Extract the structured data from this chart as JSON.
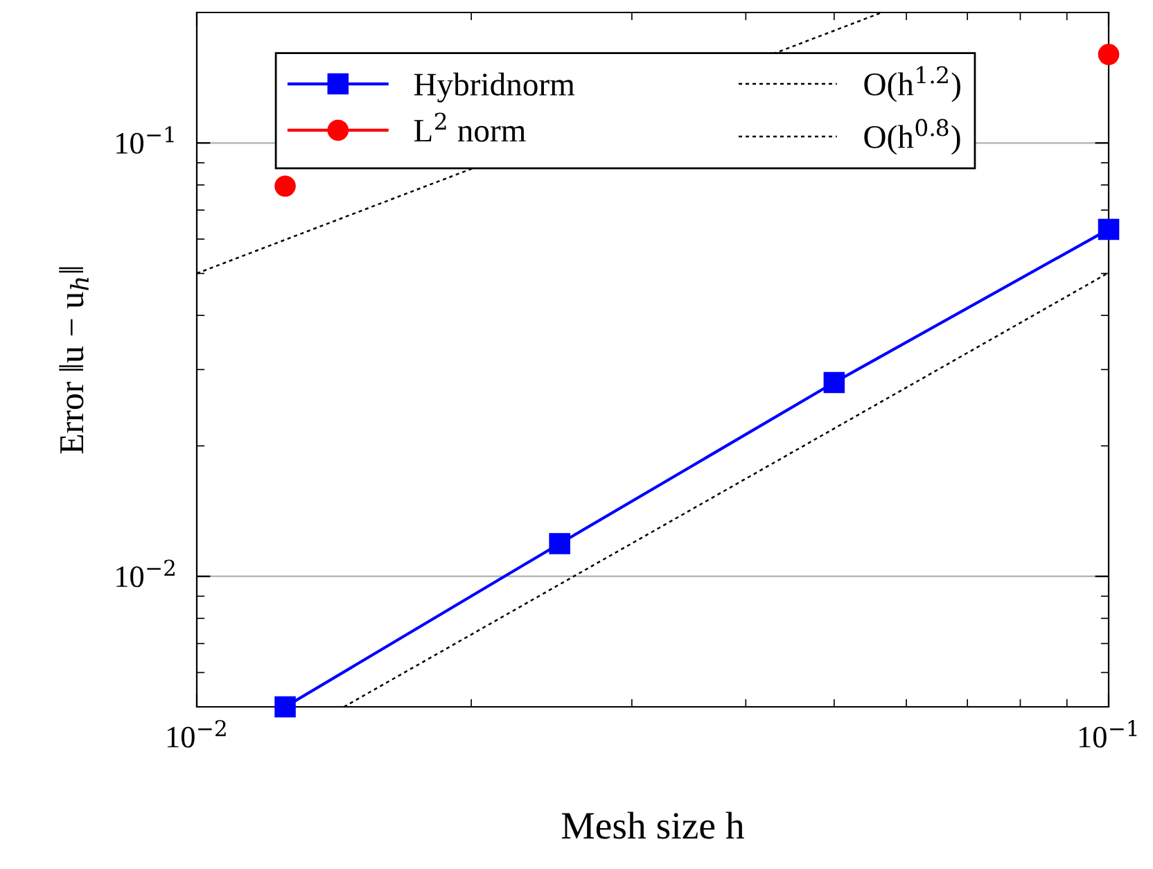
{
  "chart_data": {
    "type": "line",
    "xlabel": "Mesh size h",
    "ylabel": "Error ‖u − u$_{h}$‖",
    "x": [
      0.0125,
      0.025,
      0.05,
      0.1
    ],
    "series": [
      {
        "name": "Hybridnorm",
        "color": "#0000ff",
        "values": [
          0.005,
          0.0119,
          0.028,
          0.0632
        ],
        "marker": "square",
        "line_style": "solid"
      },
      {
        "name": "L$^{2}$ norm",
        "color": "#ff0000",
        "values": [
          0.0795,
          null,
          null,
          0.16
        ],
        "marker": "circle",
        "line_style": "solid"
      },
      {
        "name": "O(h$^{1.2}$)",
        "color": "#000000",
        "x": [
          0.0145,
          0.1
        ],
        "values": [
          0.005,
          0.0502
        ],
        "marker": "none",
        "line_style": "dotted"
      },
      {
        "name": "O(h$^{0.8}$)",
        "color": "#000000",
        "x": [
          0.01,
          0.0564
        ],
        "values": [
          0.05,
          0.2
        ],
        "marker": "none",
        "line_style": "dotted"
      }
    ],
    "log": "xy",
    "xlim": [
      0.01,
      0.1
    ],
    "ylim": [
      0.005,
      0.2
    ],
    "xticks": [
      {
        "value": 0.01,
        "label": "10$^{−2}$"
      },
      {
        "value": 0.1,
        "label": "10$^{−1}$"
      }
    ],
    "yticks": [
      {
        "value": 0.01,
        "label": "10$^{−2}$"
      },
      {
        "value": 0.1,
        "label": "10$^{−1}$"
      }
    ],
    "grid": "y",
    "legend": "top"
  }
}
